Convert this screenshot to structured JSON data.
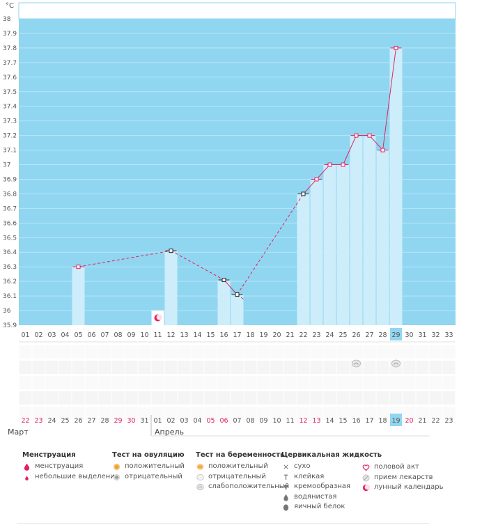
{
  "chart_data": {
    "type": "line",
    "unit_label": "°C",
    "ylim": [
      35.9,
      38.0
    ],
    "y_ticks": [
      "35.9",
      "36",
      "36.1",
      "36.2",
      "36.3",
      "36.4",
      "36.5",
      "36.6",
      "36.7",
      "36.8",
      "36.9",
      "37",
      "37.1",
      "37.2",
      "37.3",
      "37.4",
      "37.5",
      "37.6",
      "37.7",
      "37.8",
      "37.9",
      "38"
    ],
    "cycle_days": [
      "01",
      "02",
      "03",
      "04",
      "05",
      "06",
      "07",
      "08",
      "09",
      "10",
      "11",
      "12",
      "13",
      "14",
      "15",
      "16",
      "17",
      "18",
      "19",
      "20",
      "21",
      "22",
      "23",
      "24",
      "25",
      "26",
      "27",
      "28",
      "29",
      "30",
      "31",
      "32",
      "33"
    ],
    "current_day": "29",
    "dates": [
      "22",
      "23",
      "24",
      "25",
      "26",
      "27",
      "28",
      "29",
      "30",
      "31",
      "01",
      "02",
      "03",
      "04",
      "05",
      "06",
      "07",
      "08",
      "09",
      "10",
      "11",
      "12",
      "13",
      "14",
      "15",
      "16",
      "17",
      "18",
      "19",
      "20",
      "21",
      "22",
      "23"
    ],
    "red_date_indices": [
      0,
      1,
      7,
      8,
      14,
      15,
      21,
      22,
      29
    ],
    "current_date": "19",
    "months": [
      "Март",
      "Апрель"
    ],
    "points": [
      {
        "day": 5,
        "temp": 36.3,
        "color": "pink",
        "bar": true
      },
      {
        "day": 12,
        "temp": 36.41,
        "color": "black",
        "bar": true
      },
      {
        "day": 16,
        "temp": 36.21,
        "color": "black",
        "bar": true
      },
      {
        "day": 17,
        "temp": 36.11,
        "color": "black",
        "bar": true
      },
      {
        "day": 22,
        "temp": 36.8,
        "color": "black",
        "bar": true
      },
      {
        "day": 23,
        "temp": 36.9,
        "color": "pink",
        "bar": true
      },
      {
        "day": 24,
        "temp": 37.0,
        "color": "pink",
        "bar": true
      },
      {
        "day": 25,
        "temp": 37.0,
        "color": "pink",
        "bar": true
      },
      {
        "day": 26,
        "temp": 37.2,
        "color": "pink",
        "bar": true
      },
      {
        "day": 27,
        "temp": 37.2,
        "color": "pink",
        "bar": true
      },
      {
        "day": 28,
        "temp": 37.1,
        "color": "pink",
        "bar": true
      },
      {
        "day": 29,
        "temp": 37.8,
        "color": "pink",
        "bar": true
      }
    ],
    "segments": [
      {
        "from": 0,
        "to": 1,
        "dashed": true
      },
      {
        "from": 1,
        "to": 2,
        "dashed": true
      },
      {
        "from": 2,
        "to": 3,
        "dashed": false
      },
      {
        "from": 3,
        "to": 4,
        "dashed": true
      },
      {
        "from": 4,
        "to": 5,
        "dashed": false
      },
      {
        "from": 5,
        "to": 6,
        "dashed": false
      },
      {
        "from": 6,
        "to": 7,
        "dashed": false
      },
      {
        "from": 7,
        "to": 8,
        "dashed": false
      },
      {
        "from": 8,
        "to": 9,
        "dashed": false
      },
      {
        "from": 9,
        "to": 10,
        "dashed": false
      },
      {
        "from": 10,
        "to": 11,
        "dashed": false
      }
    ],
    "markers": [
      {
        "day": 11,
        "type": "lunar-calendar"
      },
      {
        "day": 26,
        "type": "pregnancy-test-weak-positive"
      },
      {
        "day": 29,
        "type": "pregnancy-test-weak-positive"
      }
    ],
    "colors": {
      "plot_bg": "#90d6f1",
      "bar": "#cdedfb",
      "line": "#e2225f",
      "grid": "#b8e6f7"
    }
  },
  "legend": {
    "menstruation": {
      "title": "Менструация",
      "items": [
        "менструация",
        "небольшие выделения"
      ]
    },
    "ovulation": {
      "title": "Тест на овуляцию",
      "items": [
        "положительный",
        "отрицательный"
      ]
    },
    "pregnancy": {
      "title": "Тест на беременность",
      "items": [
        "положительный",
        "отрицательный",
        "слабоположительный"
      ]
    },
    "cervical": {
      "title": "Цервикальная жидкость",
      "items": [
        "сухо",
        "клейкая",
        "кремообразная",
        "водянистая",
        "яичный белок"
      ]
    },
    "other": {
      "items": [
        "половой акт",
        "прием лекарств",
        "лунный календарь"
      ]
    }
  }
}
